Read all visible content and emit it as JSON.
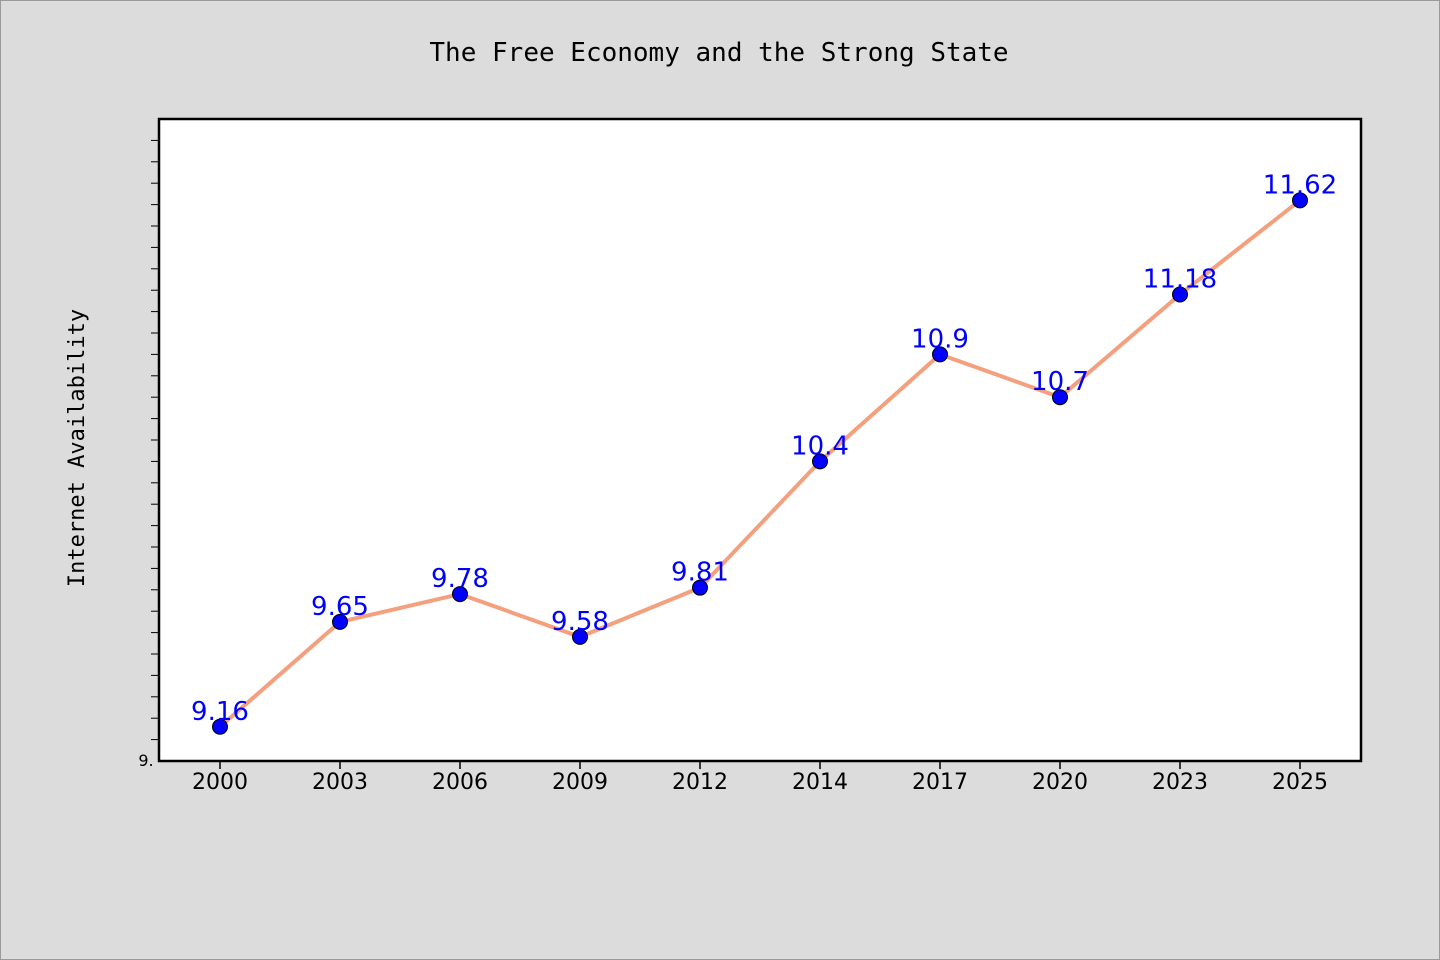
{
  "chart_data": {
    "type": "line",
    "title": "The Free Economy and the Strong State",
    "xlabel": "",
    "ylabel": "Internet Availability",
    "categories": [
      "2000",
      "2003",
      "2006",
      "2009",
      "2012",
      "2014",
      "2017",
      "2020",
      "2023",
      "2025"
    ],
    "series": [
      {
        "values": [
          9.16,
          9.65,
          9.78,
          9.58,
          9.81,
          10.4,
          10.9,
          10.7,
          11.18,
          11.62
        ],
        "labels": [
          "9.16",
          "9.65",
          "9.78",
          "9.58",
          "9.81",
          "10.4",
          "10.9",
          "10.7",
          "11.18",
          "11.62"
        ]
      }
    ],
    "ylim": [
      9.0,
      12.0
    ],
    "ytick_label": "9.",
    "grid": false,
    "legend": "none",
    "colors": {
      "background": "#dcdcdc",
      "plot_background": "#ffffff",
      "line": "#f4a07e",
      "marker": "#0000ff",
      "data_label": "#0000ff"
    }
  }
}
